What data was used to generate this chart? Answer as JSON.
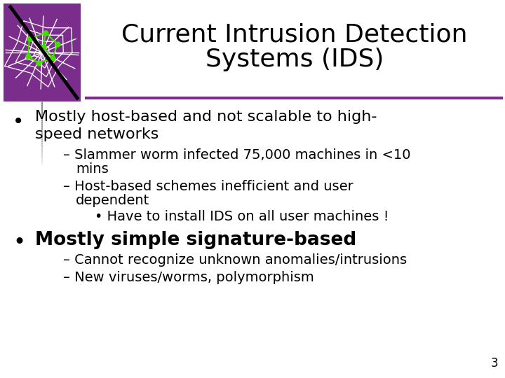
{
  "title_line1": "Current Intrusion Detection",
  "title_line2": "Systems (IDS)",
  "title_color": "#000000",
  "title_fontsize": 26,
  "background_color": "#ffffff",
  "bullet1": "Mostly host-based and not scalable to high-\nspeed networks",
  "sub1a": "– Slammer worm infected 75,000 machines in <10\n    mins",
  "sub1b": "– Host-based schemes inefficient and user\n    dependent",
  "sub1c": "• Have to install IDS on all user machines !",
  "bullet2": "Mostly simple signature-based",
  "sub2a": "– Cannot recognize unknown anomalies/intrusions",
  "sub2b": "– New viruses/worms, polymorphism",
  "page_number": "3",
  "header_line_color": "#7b2d8b",
  "bullet_color": "#000000",
  "logo_bg_color": "#7b2d8b",
  "text_fontsize": 16,
  "sub_fontsize": 14,
  "bullet2_fontsize": 19
}
